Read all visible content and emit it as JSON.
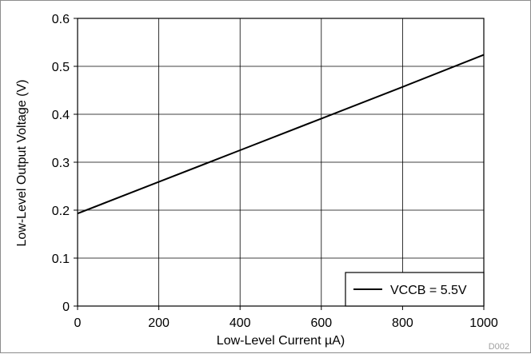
{
  "chart_data": {
    "type": "line",
    "title": "",
    "xlabel": "Low-Level Current µA)",
    "ylabel": "Low-Level Output Voltage (V)",
    "xlim": [
      0,
      1000
    ],
    "ylim": [
      0,
      0.6
    ],
    "x_ticks": [
      0,
      200,
      400,
      600,
      800,
      1000
    ],
    "x_tick_labels": [
      "0",
      "200",
      "400",
      "600",
      "800",
      "1000"
    ],
    "y_ticks": [
      0,
      0.1,
      0.2,
      0.3,
      0.4,
      0.5,
      0.6
    ],
    "y_tick_labels": [
      "0",
      "0.1",
      "0.2",
      "0.3",
      "0.4",
      "0.5",
      "0.6"
    ],
    "grid": true,
    "legend_position": "bottom-right",
    "series": [
      {
        "name": "VCCB = 5.5V",
        "color": "#000000",
        "x": [
          0,
          200,
          400,
          600,
          800,
          1000
        ],
        "y": [
          0.193,
          0.259,
          0.325,
          0.391,
          0.457,
          0.524
        ]
      }
    ],
    "footnote": "D002"
  }
}
